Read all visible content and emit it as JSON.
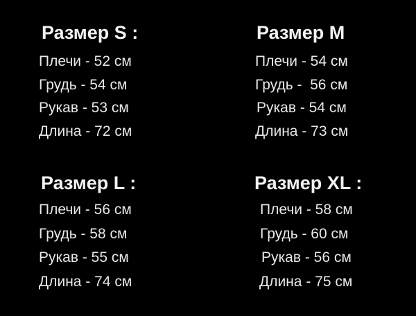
{
  "sizes": [
    {
      "title": "Размер S :",
      "lines": [
        "Плечи - 52 см",
        "Грудь - 54 см",
        "Рукав - 53 см",
        "Длина - 72 см"
      ]
    },
    {
      "title": "Размер M",
      "lines": [
        "Плечи - 54 см",
        "Грудь -  56 см",
        "Рукав - 54 см",
        "Длина - 73 см"
      ]
    },
    {
      "title": "Размер L :",
      "lines": [
        "Плечи - 56 см",
        "Грудь - 58 см",
        "Рукав - 55 см",
        "Длина - 74 см"
      ]
    },
    {
      "title": "Размер XL :",
      "lines": [
        "Плечи - 58 см",
        "Грудь - 60 см",
        "Рукав - 56 см",
        "Длина - 75 см"
      ]
    }
  ]
}
